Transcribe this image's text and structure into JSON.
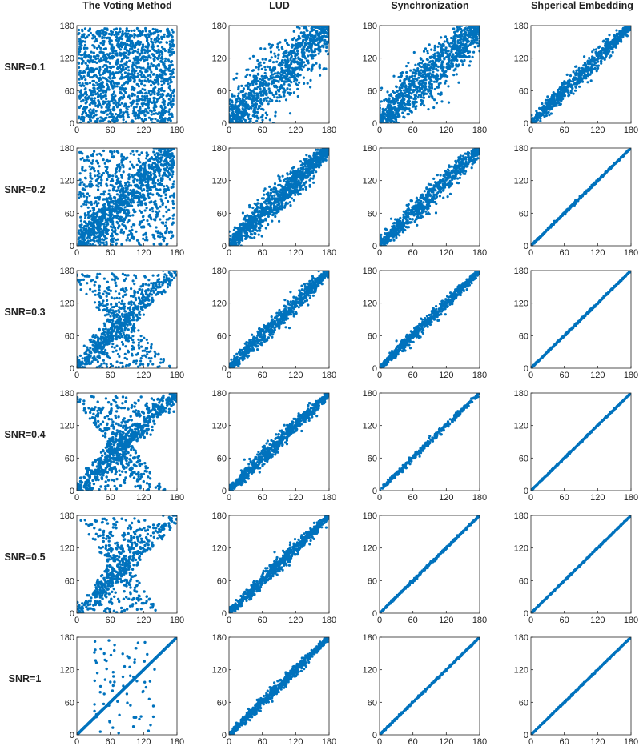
{
  "chart_data": {
    "type": "scatter",
    "columns": [
      "The Voting Method",
      "LUD",
      "Synchronization",
      "Shperical Embedding"
    ],
    "rows": [
      "SNR=0.1",
      "SNR=0.2",
      "SNR=0.3",
      "SNR=0.4",
      "SNR=0.5",
      "SNR=1"
    ],
    "xlim": [
      0,
      180
    ],
    "ylim": [
      0,
      180
    ],
    "xticks": [
      "0",
      "60",
      "120",
      "180"
    ],
    "yticks": [
      "0",
      "60",
      "120",
      "180"
    ],
    "marker_color": "#0072BD",
    "panel_spread": [
      [
        180,
        45,
        38,
        14
      ],
      [
        150,
        22,
        18,
        2
      ],
      [
        130,
        14,
        9,
        1.5
      ],
      [
        110,
        12,
        5,
        1.2
      ],
      [
        90,
        11,
        2,
        1
      ],
      [
        18,
        8,
        1.5,
        1
      ]
    ]
  }
}
